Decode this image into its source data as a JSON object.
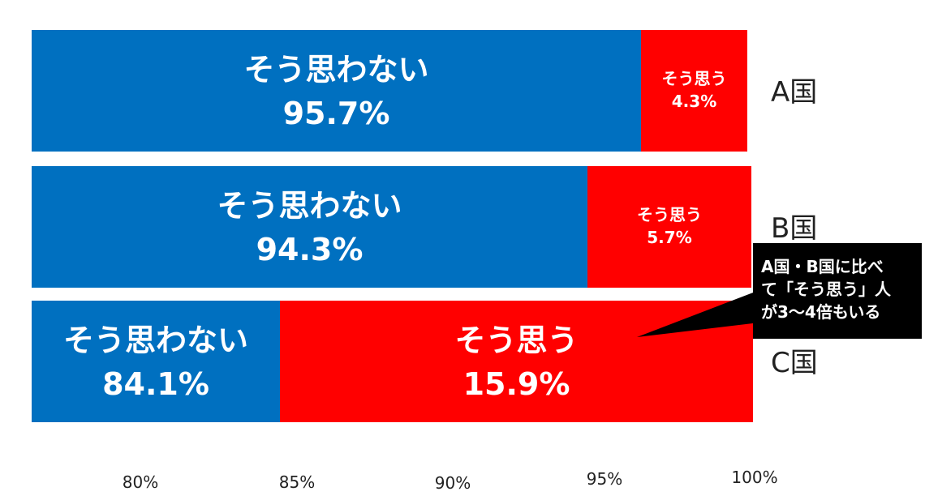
{
  "chart_data": {
    "type": "bar",
    "orientation": "horizontal",
    "stacked": true,
    "categories": [
      "A国",
      "B国",
      "C国"
    ],
    "series": [
      {
        "name": "そう思わない",
        "color": "#0070C0",
        "values": [
          95.7,
          94.3,
          84.1
        ],
        "labels": [
          "95.7%",
          "94.3%",
          "84.1%"
        ]
      },
      {
        "name": "そう思う",
        "color": "#FF0000",
        "values": [
          4.3,
          5.7,
          15.9
        ],
        "labels": [
          "4.3%",
          "5.7%",
          "15.9%"
        ]
      }
    ],
    "x_ticks": [
      "80%",
      "85%",
      "90%",
      "95%",
      "100%"
    ],
    "legend": "none",
    "grid": false,
    "callout": {
      "lines": [
        "A国・B国に比べ",
        "て「そう思う」人",
        "が3〜4倍もいる"
      ],
      "target": "C国"
    }
  }
}
